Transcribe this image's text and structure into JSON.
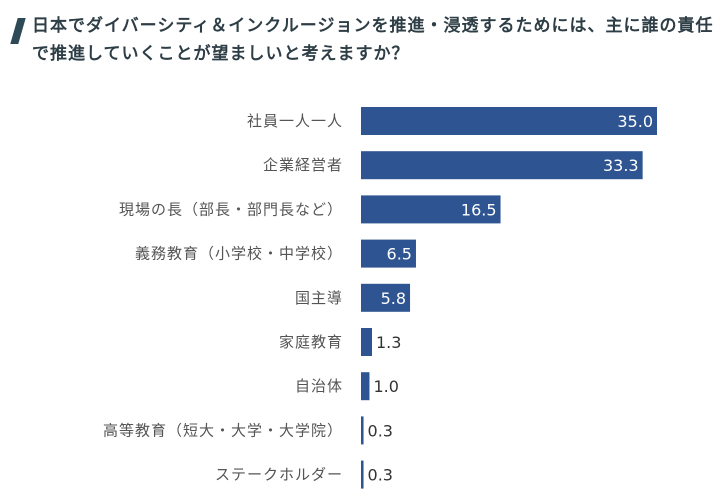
{
  "title": "日本でダイバーシティ＆インクルージョンを推進・浸透するためには、主に誰の責任で推進していくことが望ましいと考えますか？",
  "colors": {
    "bar": "#2e5491",
    "title_mark": "#2e4a57"
  },
  "chart_data": {
    "type": "bar",
    "orientation": "horizontal",
    "categories": [
      "社員一人一人",
      "企業経営者",
      "現場の長（部長・部門長など）",
      "義務教育（小学校・中学校）",
      "国主導",
      "家庭教育",
      "自治体",
      "高等教育（短大・大学・大学院）",
      "ステークホルダー"
    ],
    "values": [
      35.0,
      33.3,
      16.5,
      6.5,
      5.8,
      1.3,
      1.0,
      0.3,
      0.3
    ],
    "value_labels": [
      "35.0",
      "33.3",
      "16.5",
      "6.5",
      "5.8",
      "1.3",
      "1.0",
      "0.3",
      "0.3"
    ],
    "xlim": [
      0,
      35
    ],
    "grid": false,
    "legend": "none"
  }
}
